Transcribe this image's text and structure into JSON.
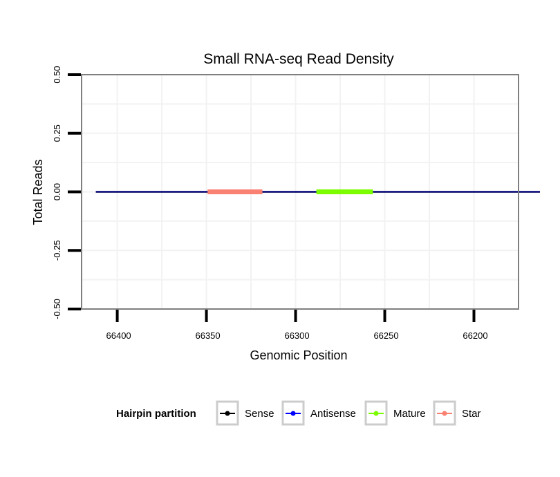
{
  "chart_data": {
    "type": "line",
    "title": "Small RNA-seq Read Density",
    "xlabel": "Genomic Position",
    "ylabel": "Total Reads",
    "xlim": [
      66175,
      66420
    ],
    "x_reversed": true,
    "ylim": [
      -0.5,
      0.5
    ],
    "xticks": [
      66400,
      66350,
      66300,
      66250,
      66200
    ],
    "xtick_labels": [
      "66400",
      "66350",
      "66300",
      "66250",
      "66200"
    ],
    "yticks": [
      -0.5,
      -0.25,
      0,
      0.25,
      0.5
    ],
    "ytick_labels": [
      "-0.50",
      "-0.25",
      "0.00",
      "0.25",
      "0.50"
    ],
    "grid": true,
    "legend": {
      "title": "Hairpin partition",
      "position": "bottom",
      "entries": [
        {
          "name": "Sense",
          "color": "#000000"
        },
        {
          "name": "Antisense",
          "color": "#0000ff"
        },
        {
          "name": "Mature",
          "color": "#7cfc00"
        },
        {
          "name": "Star",
          "color": "#fa8072"
        }
      ]
    },
    "series": [
      {
        "name": "Sense",
        "color": "#000000",
        "x": [
          66412,
          66163
        ],
        "y": [
          0,
          0
        ]
      },
      {
        "name": "Antisense",
        "color": "#0000ff",
        "x": [
          66412,
          66163
        ],
        "y": [
          0,
          0
        ]
      },
      {
        "name": "Mature",
        "color": "#7cfc00",
        "x": [
          66287,
          66258
        ],
        "y": [
          0,
          0
        ]
      },
      {
        "name": "Star",
        "color": "#fa8072",
        "x": [
          66348,
          66320
        ],
        "y": [
          0,
          0
        ]
      }
    ]
  }
}
